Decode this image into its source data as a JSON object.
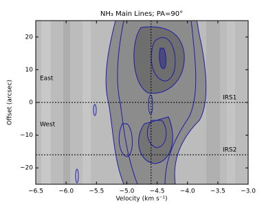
{
  "chart_data": {
    "type": "image",
    "title": "NH₃ Main Lines; PA=90°",
    "xlabel": "Velocity (km s⁻¹)",
    "ylabel": "Offset (arcsec)",
    "xlim": [
      -6.5,
      -3.0
    ],
    "ylim": [
      -25,
      25
    ],
    "xticks": [
      {
        "value": -6.5,
        "label": "−6.5"
      },
      {
        "value": -6.0,
        "label": "−6.0"
      },
      {
        "value": -5.5,
        "label": "−5.5"
      },
      {
        "value": -5.0,
        "label": "−5.0"
      },
      {
        "value": -4.5,
        "label": "−4.5"
      },
      {
        "value": -4.0,
        "label": "−4.0"
      },
      {
        "value": -3.5,
        "label": "−3.5"
      },
      {
        "value": -3.0,
        "label": "−3.0"
      }
    ],
    "yticks": [
      {
        "value": -20,
        "label": "−20"
      },
      {
        "value": -10,
        "label": "−10"
      },
      0,
      10,
      20
    ],
    "reference_lines": {
      "y": [
        0,
        -16
      ],
      "x": [
        -4.6
      ]
    },
    "annotations": [
      "East",
      "West",
      "IRS1",
      "IRS2"
    ]
  }
}
